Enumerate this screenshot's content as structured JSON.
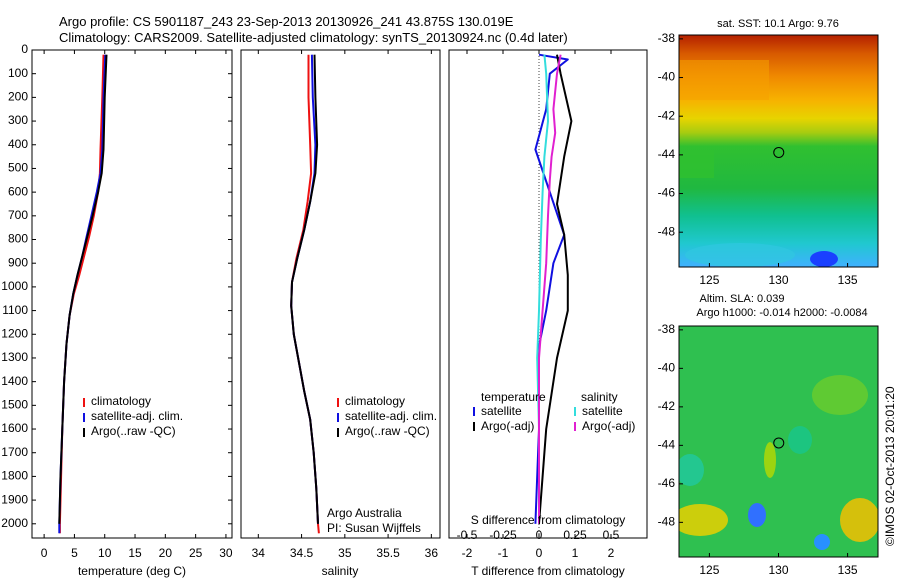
{
  "header": {
    "line1": "Argo profile: CS 5901187_243 23-Sep-2013 20130926_241 43.875S 130.019E",
    "line2": "Climatology: CARS2009. Satellite-adjusted climatology: synTS_20130924.nc (0.4d later)"
  },
  "colors": {
    "climatology": "#e11",
    "satellite": "#1010e0",
    "argo": "#000000",
    "sal_satellite": "#33dddd",
    "sal_argo": "#e020d0"
  },
  "depth_ticks": [
    "0",
    "100",
    "200",
    "300",
    "400",
    "500",
    "600",
    "700",
    "800",
    "900",
    "1000",
    "1100",
    "1200",
    "1300",
    "1400",
    "1500",
    "1600",
    "1700",
    "1800",
    "1900",
    "2000"
  ],
  "chart_data": [
    {
      "type": "line",
      "id": "temperature",
      "xlabel": "temperature (deg C)",
      "xlim": [
        -2,
        31
      ],
      "ylim": [
        2060,
        0
      ],
      "xticks": [
        0,
        5,
        10,
        15,
        20,
        25,
        30
      ],
      "xtick_labels": [
        "0",
        "5",
        "10",
        "15",
        "20",
        "25",
        "30"
      ],
      "legend": [
        "climatology",
        "satellite-adj. clim.",
        "Argo(..raw -QC)"
      ],
      "series": [
        {
          "name": "climatology",
          "color": "#e11",
          "points": [
            [
              9.8,
              20
            ],
            [
              9.6,
              200
            ],
            [
              9.3,
              420
            ],
            [
              9.2,
              520
            ],
            [
              8.9,
              600
            ],
            [
              8.2,
              700
            ],
            [
              7.4,
              790
            ],
            [
              6.6,
              870
            ],
            [
              5.8,
              950
            ],
            [
              4.9,
              1030
            ],
            [
              4.2,
              1120
            ],
            [
              3.7,
              1240
            ],
            [
              3.3,
              1400
            ],
            [
              3.0,
              1600
            ],
            [
              2.8,
              1800
            ],
            [
              2.6,
              2000
            ],
            [
              2.6,
              2040
            ]
          ]
        },
        {
          "name": "satellite-adj. clim.",
          "color": "#1010e0",
          "points": [
            [
              10.1,
              20
            ],
            [
              9.8,
              200
            ],
            [
              9.6,
              420
            ],
            [
              9.3,
              520
            ],
            [
              8.7,
              600
            ],
            [
              7.8,
              700
            ],
            [
              7.0,
              790
            ],
            [
              6.3,
              870
            ],
            [
              5.5,
              950
            ],
            [
              4.8,
              1030
            ],
            [
              4.2,
              1120
            ],
            [
              3.7,
              1240
            ],
            [
              3.3,
              1400
            ],
            [
              3.0,
              1600
            ],
            [
              2.7,
              1800
            ],
            [
              2.5,
              2000
            ],
            [
              2.5,
              2040
            ]
          ]
        },
        {
          "name": "Argo(..raw -QC)",
          "color": "#000000",
          "points": [
            [
              10.3,
              20
            ],
            [
              10.0,
              200
            ],
            [
              9.8,
              420
            ],
            [
              9.5,
              520
            ],
            [
              8.9,
              600
            ],
            [
              8.0,
              700
            ],
            [
              7.1,
              790
            ],
            [
              6.3,
              870
            ],
            [
              5.5,
              950
            ],
            [
              4.8,
              1030
            ],
            [
              4.2,
              1120
            ],
            [
              3.7,
              1240
            ],
            [
              3.3,
              1400
            ],
            [
              3.0,
              1600
            ],
            [
              2.7,
              1800
            ],
            [
              2.5,
              2000
            ]
          ]
        }
      ]
    },
    {
      "type": "line",
      "id": "salinity",
      "xlabel": "salinity",
      "xlim": [
        33.8,
        36.1
      ],
      "ylim": [
        2060,
        0
      ],
      "xticks": [
        34,
        34.5,
        35,
        35.5,
        36
      ],
      "xtick_labels": [
        "34",
        "34.5",
        "35",
        "35.5",
        "36"
      ],
      "legend": [
        "climatology",
        "satellite-adj. clim.",
        "Argo(..raw -QC)"
      ],
      "annotation": [
        "Argo Australia",
        "PI: Susan Wijffels"
      ],
      "series": [
        {
          "name": "climatology",
          "color": "#e11",
          "points": [
            [
              34.58,
              20
            ],
            [
              34.58,
              200
            ],
            [
              34.6,
              400
            ],
            [
              34.61,
              520
            ],
            [
              34.57,
              640
            ],
            [
              34.52,
              760
            ],
            [
              34.44,
              880
            ],
            [
              34.39,
              980
            ],
            [
              34.38,
              1080
            ],
            [
              34.41,
              1200
            ],
            [
              34.47,
              1320
            ],
            [
              34.53,
              1440
            ],
            [
              34.6,
              1560
            ],
            [
              34.64,
              1700
            ],
            [
              34.67,
              1850
            ],
            [
              34.69,
              2000
            ],
            [
              34.7,
              2040
            ]
          ]
        },
        {
          "name": "satellite-adj. clim.",
          "color": "#1010e0",
          "points": [
            [
              34.62,
              20
            ],
            [
              34.63,
              200
            ],
            [
              34.66,
              400
            ],
            [
              34.65,
              520
            ],
            [
              34.6,
              640
            ],
            [
              34.53,
              760
            ],
            [
              34.45,
              880
            ],
            [
              34.39,
              980
            ],
            [
              34.38,
              1080
            ],
            [
              34.41,
              1200
            ],
            [
              34.47,
              1320
            ],
            [
              34.53,
              1440
            ],
            [
              34.6,
              1560
            ],
            [
              34.64,
              1700
            ],
            [
              34.67,
              1850
            ],
            [
              34.69,
              2000
            ]
          ]
        },
        {
          "name": "Argo(..raw -QC)",
          "color": "#000000",
          "points": [
            [
              34.65,
              20
            ],
            [
              34.66,
              200
            ],
            [
              34.68,
              400
            ],
            [
              34.66,
              520
            ],
            [
              34.6,
              640
            ],
            [
              34.53,
              760
            ],
            [
              34.45,
              880
            ],
            [
              34.39,
              980
            ],
            [
              34.38,
              1080
            ],
            [
              34.41,
              1200
            ],
            [
              34.47,
              1320
            ],
            [
              34.53,
              1440
            ],
            [
              34.6,
              1560
            ],
            [
              34.64,
              1700
            ],
            [
              34.67,
              1850
            ],
            [
              34.69,
              2000
            ]
          ]
        }
      ]
    },
    {
      "type": "line",
      "id": "difference",
      "xlabel": "T difference from climatology",
      "xlabel_top": "S difference from climatology",
      "xlim": [
        -2.5,
        3
      ],
      "ylim": [
        2060,
        0
      ],
      "xticks": [
        -2,
        -1,
        0,
        1,
        2
      ],
      "xtick_labels": [
        "-2",
        "-1",
        "0",
        "1",
        "2"
      ],
      "sticks_labels": [
        "-0.5",
        "-0.25",
        "0",
        "0.25",
        "0.5"
      ],
      "legend_temperature": [
        "temperature",
        "satellite",
        "Argo(-adj)"
      ],
      "legend_salinity": [
        "salinity",
        "satellite",
        "Argo(-adj)"
      ],
      "series": [
        {
          "name": "satellite",
          "group": "temperature",
          "color": "#1010e0",
          "points": [
            [
              0.0,
              20
            ],
            [
              0.8,
              40
            ],
            [
              0.3,
              100
            ],
            [
              0.2,
              250
            ],
            [
              -0.1,
              420
            ],
            [
              0.3,
              600
            ],
            [
              0.7,
              780
            ],
            [
              0.4,
              900
            ],
            [
              0.2,
              1100
            ],
            [
              0.0,
              1250
            ],
            [
              0.0,
              1600
            ],
            [
              -0.1,
              2000
            ]
          ]
        },
        {
          "name": "Argo(-adj)",
          "group": "temperature",
          "color": "#000000",
          "points": [
            [
              0.5,
              20
            ],
            [
              0.6,
              100
            ],
            [
              0.9,
              300
            ],
            [
              0.7,
              450
            ],
            [
              0.6,
              550
            ],
            [
              0.5,
              650
            ],
            [
              0.7,
              780
            ],
            [
              0.8,
              950
            ],
            [
              0.8,
              1100
            ],
            [
              0.5,
              1300
            ],
            [
              0.2,
              1600
            ],
            [
              0.0,
              2000
            ]
          ]
        },
        {
          "name": "satellite",
          "group": "salinity",
          "color": "#33dddd",
          "points": [
            [
              0.15,
              20
            ],
            [
              0.2,
              100
            ],
            [
              0.25,
              300
            ],
            [
              0.15,
              450
            ],
            [
              0.1,
              600
            ],
            [
              0.05,
              800
            ],
            [
              0.0,
              1100
            ],
            [
              -0.05,
              1300
            ],
            [
              0.0,
              1600
            ],
            [
              0.0,
              2000
            ]
          ]
        },
        {
          "name": "Argo(-adj)",
          "group": "salinity",
          "color": "#e020d0",
          "points": [
            [
              0.6,
              20
            ],
            [
              0.5,
              100
            ],
            [
              0.4,
              250
            ],
            [
              0.45,
              350
            ],
            [
              0.35,
              450
            ],
            [
              0.3,
              550
            ],
            [
              0.25,
              700
            ],
            [
              0.2,
              900
            ],
            [
              0.1,
              1100
            ],
            [
              0.0,
              1300
            ],
            [
              0.0,
              2000
            ]
          ]
        }
      ]
    },
    {
      "type": "heatmap",
      "id": "sst-map",
      "title": "sat. SST: 10.1  Argo: 9.76",
      "xlim": [
        122.8,
        137.2
      ],
      "ylim": [
        -49.8,
        -37.8
      ],
      "xticks": [
        125,
        130,
        135
      ],
      "xtick_labels": [
        "125",
        "130",
        "135"
      ],
      "yticks": [
        -38,
        -40,
        -42,
        -44,
        -46,
        -48
      ],
      "ytick_labels": [
        "-38",
        "-40",
        "-42",
        "-44",
        "-46",
        "-48"
      ],
      "marker": {
        "lon": 130.019,
        "lat": -43.875
      }
    },
    {
      "type": "heatmap",
      "id": "sla-map",
      "title": "Altim. SLA: 0.039",
      "subtitle": "Argo h1000: -0.014 h2000: -0.0084",
      "xlim": [
        122.8,
        137.2
      ],
      "ylim": [
        -49.8,
        -37.8
      ],
      "xticks": [
        125,
        130,
        135
      ],
      "xtick_labels": [
        "125",
        "130",
        "135"
      ],
      "yticks": [
        -38,
        -40,
        -42,
        -44,
        -46,
        -48
      ],
      "ytick_labels": [
        "-38",
        "-40",
        "-42",
        "-44",
        "-46",
        "-48"
      ],
      "marker": {
        "lon": 130.019,
        "lat": -43.875
      }
    }
  ],
  "footer_stamp": "©IMOS 02-Oct-2013 20:01:20"
}
